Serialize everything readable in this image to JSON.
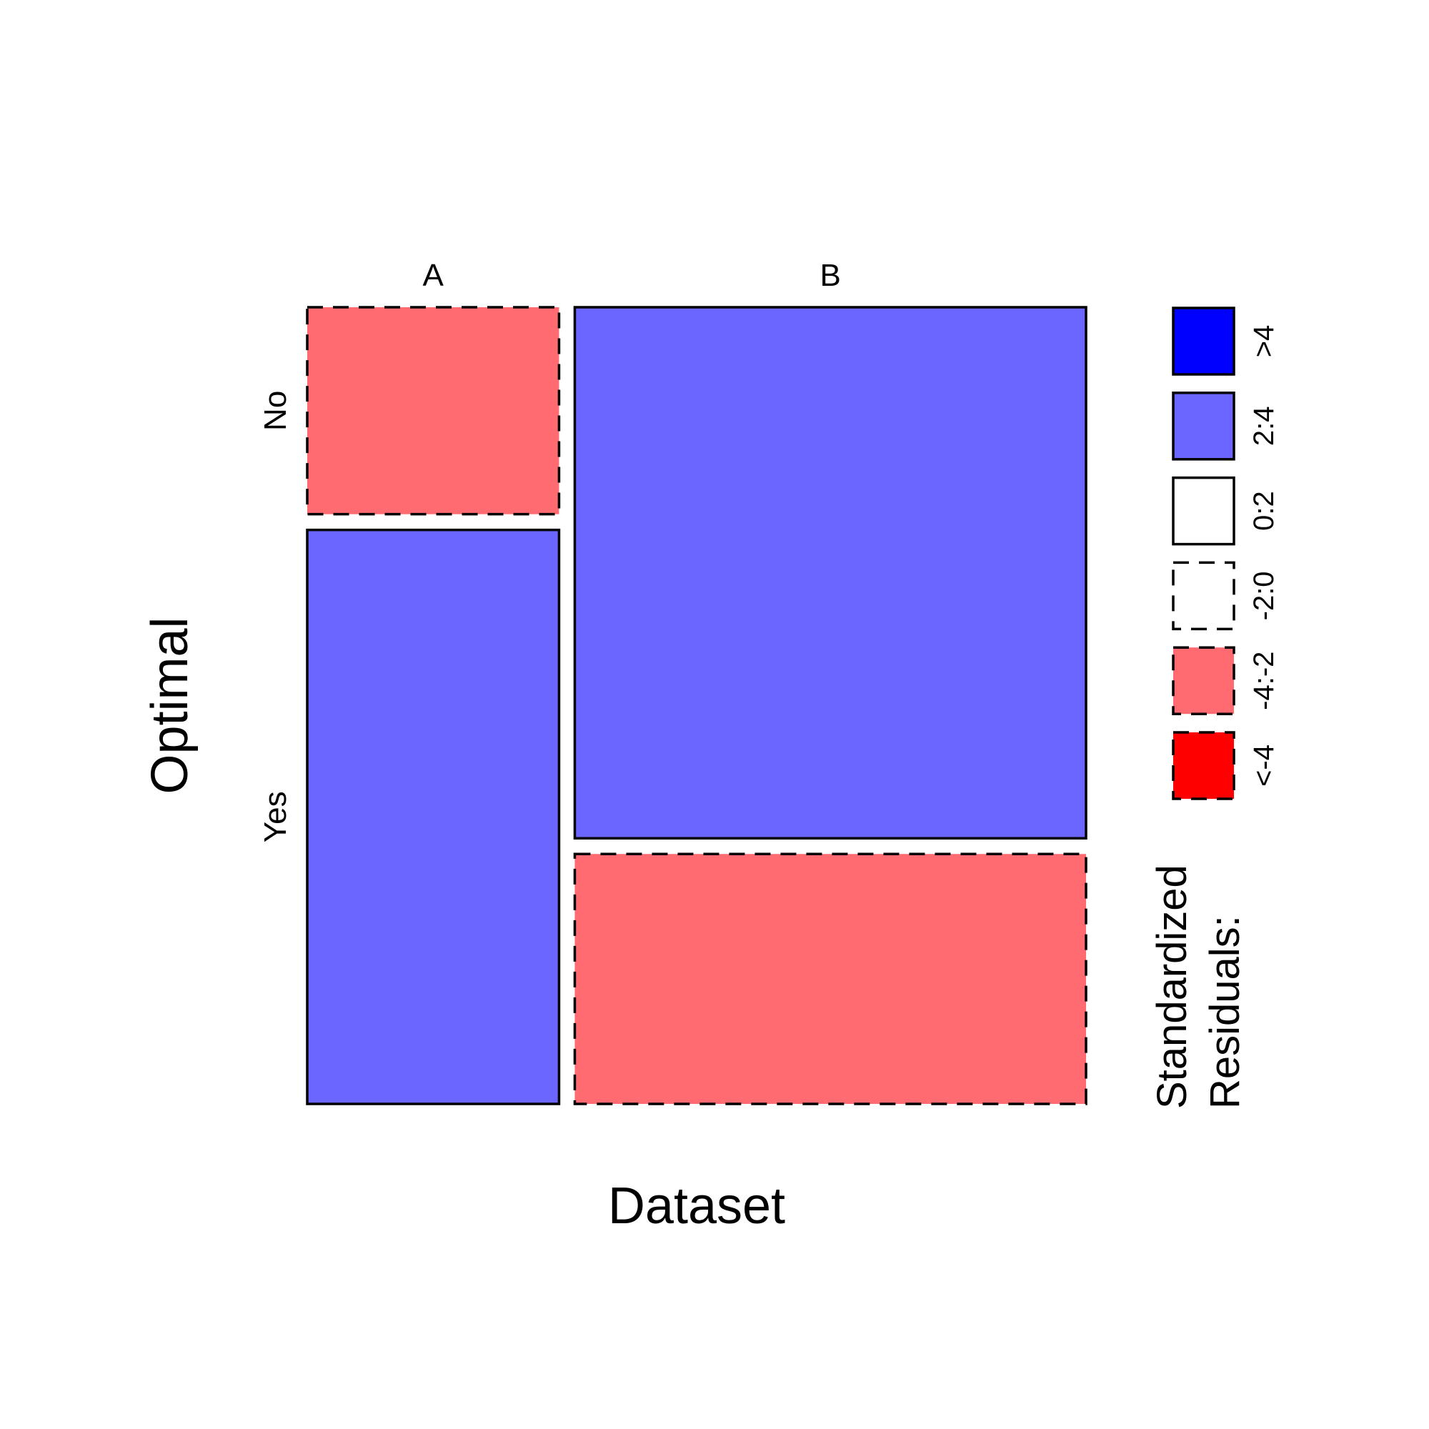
{
  "chart_data": {
    "type": "mosaic",
    "xlabel": "Dataset",
    "ylabel": "Optimal",
    "x_categories": [
      "A",
      "B"
    ],
    "y_categories": [
      "No",
      "Yes"
    ],
    "x_proportions": [
      0.33,
      0.67
    ],
    "cells": [
      {
        "x": "A",
        "y": "No",
        "share_within_x": 0.265,
        "residual_class": "-4:-2"
      },
      {
        "x": "A",
        "y": "Yes",
        "share_within_x": 0.735,
        "residual_class": "2:4"
      },
      {
        "x": "B",
        "y": "No",
        "share_within_x": 0.68,
        "residual_class": "2:4"
      },
      {
        "x": "B",
        "y": "Yes",
        "share_within_x": 0.32,
        "residual_class": "-4:-2"
      }
    ],
    "legend": {
      "title_lines": [
        "Standardized",
        "Residuals:"
      ],
      "items": [
        {
          "label": ">4",
          "fill": "#0000ff",
          "dashed": false
        },
        {
          "label": "2:4",
          "fill": "#6b66ff",
          "dashed": false
        },
        {
          "label": "0:2",
          "fill": "#ffffff",
          "dashed": false
        },
        {
          "label": "-2:0",
          "fill": "#ffffff",
          "dashed": true
        },
        {
          "label": "-4:-2",
          "fill": "#ff6b70",
          "dashed": true
        },
        {
          "label": "<-4",
          "fill": "#ff0000",
          "dashed": true
        }
      ]
    },
    "colors": {
      "positive_mid": "#6b66ff",
      "negative_mid": "#ff6b70",
      "positive_high": "#0000ff",
      "negative_high": "#ff0000",
      "stroke": "#000000"
    }
  }
}
